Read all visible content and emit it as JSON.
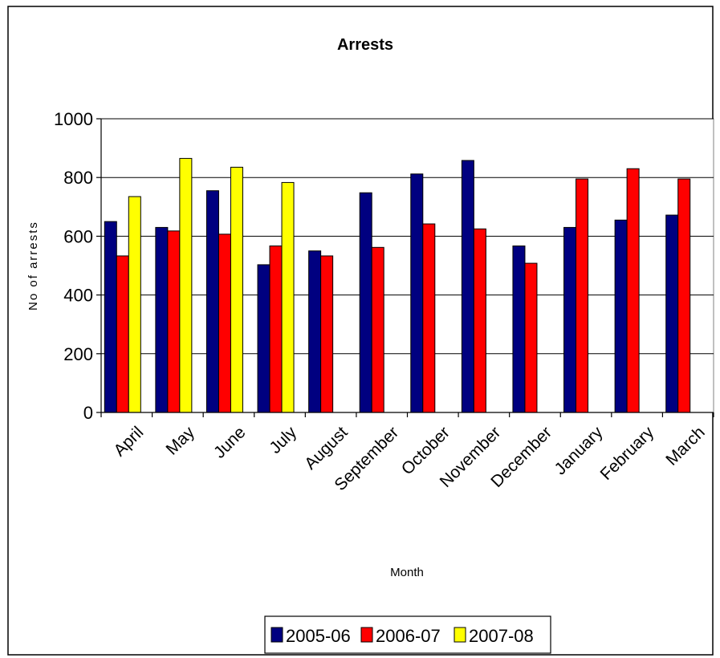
{
  "chart_data": {
    "type": "bar",
    "title": "Arrests",
    "xlabel": "Month",
    "ylabel": "No of arrests",
    "ylim": [
      0,
      1000
    ],
    "yticks": [
      0,
      200,
      400,
      600,
      800,
      1000
    ],
    "grid": true,
    "legend_position": "bottom",
    "categories": [
      "April",
      "May",
      "June",
      "July",
      "August",
      "September",
      "October",
      "November",
      "December",
      "January",
      "February",
      "March"
    ],
    "series": [
      {
        "name": "2005-06",
        "color": "#000080",
        "values": [
          650,
          630,
          755,
          503,
          550,
          748,
          812,
          858,
          567,
          630,
          655,
          672
        ]
      },
      {
        "name": "2006-07",
        "color": "#ff0000",
        "values": [
          533,
          618,
          607,
          567,
          533,
          562,
          642,
          625,
          508,
          795,
          830,
          795
        ]
      },
      {
        "name": "2007-08",
        "color": "#ffff00",
        "values": [
          735,
          865,
          835,
          783,
          null,
          null,
          null,
          null,
          null,
          null,
          null,
          null
        ]
      }
    ]
  }
}
